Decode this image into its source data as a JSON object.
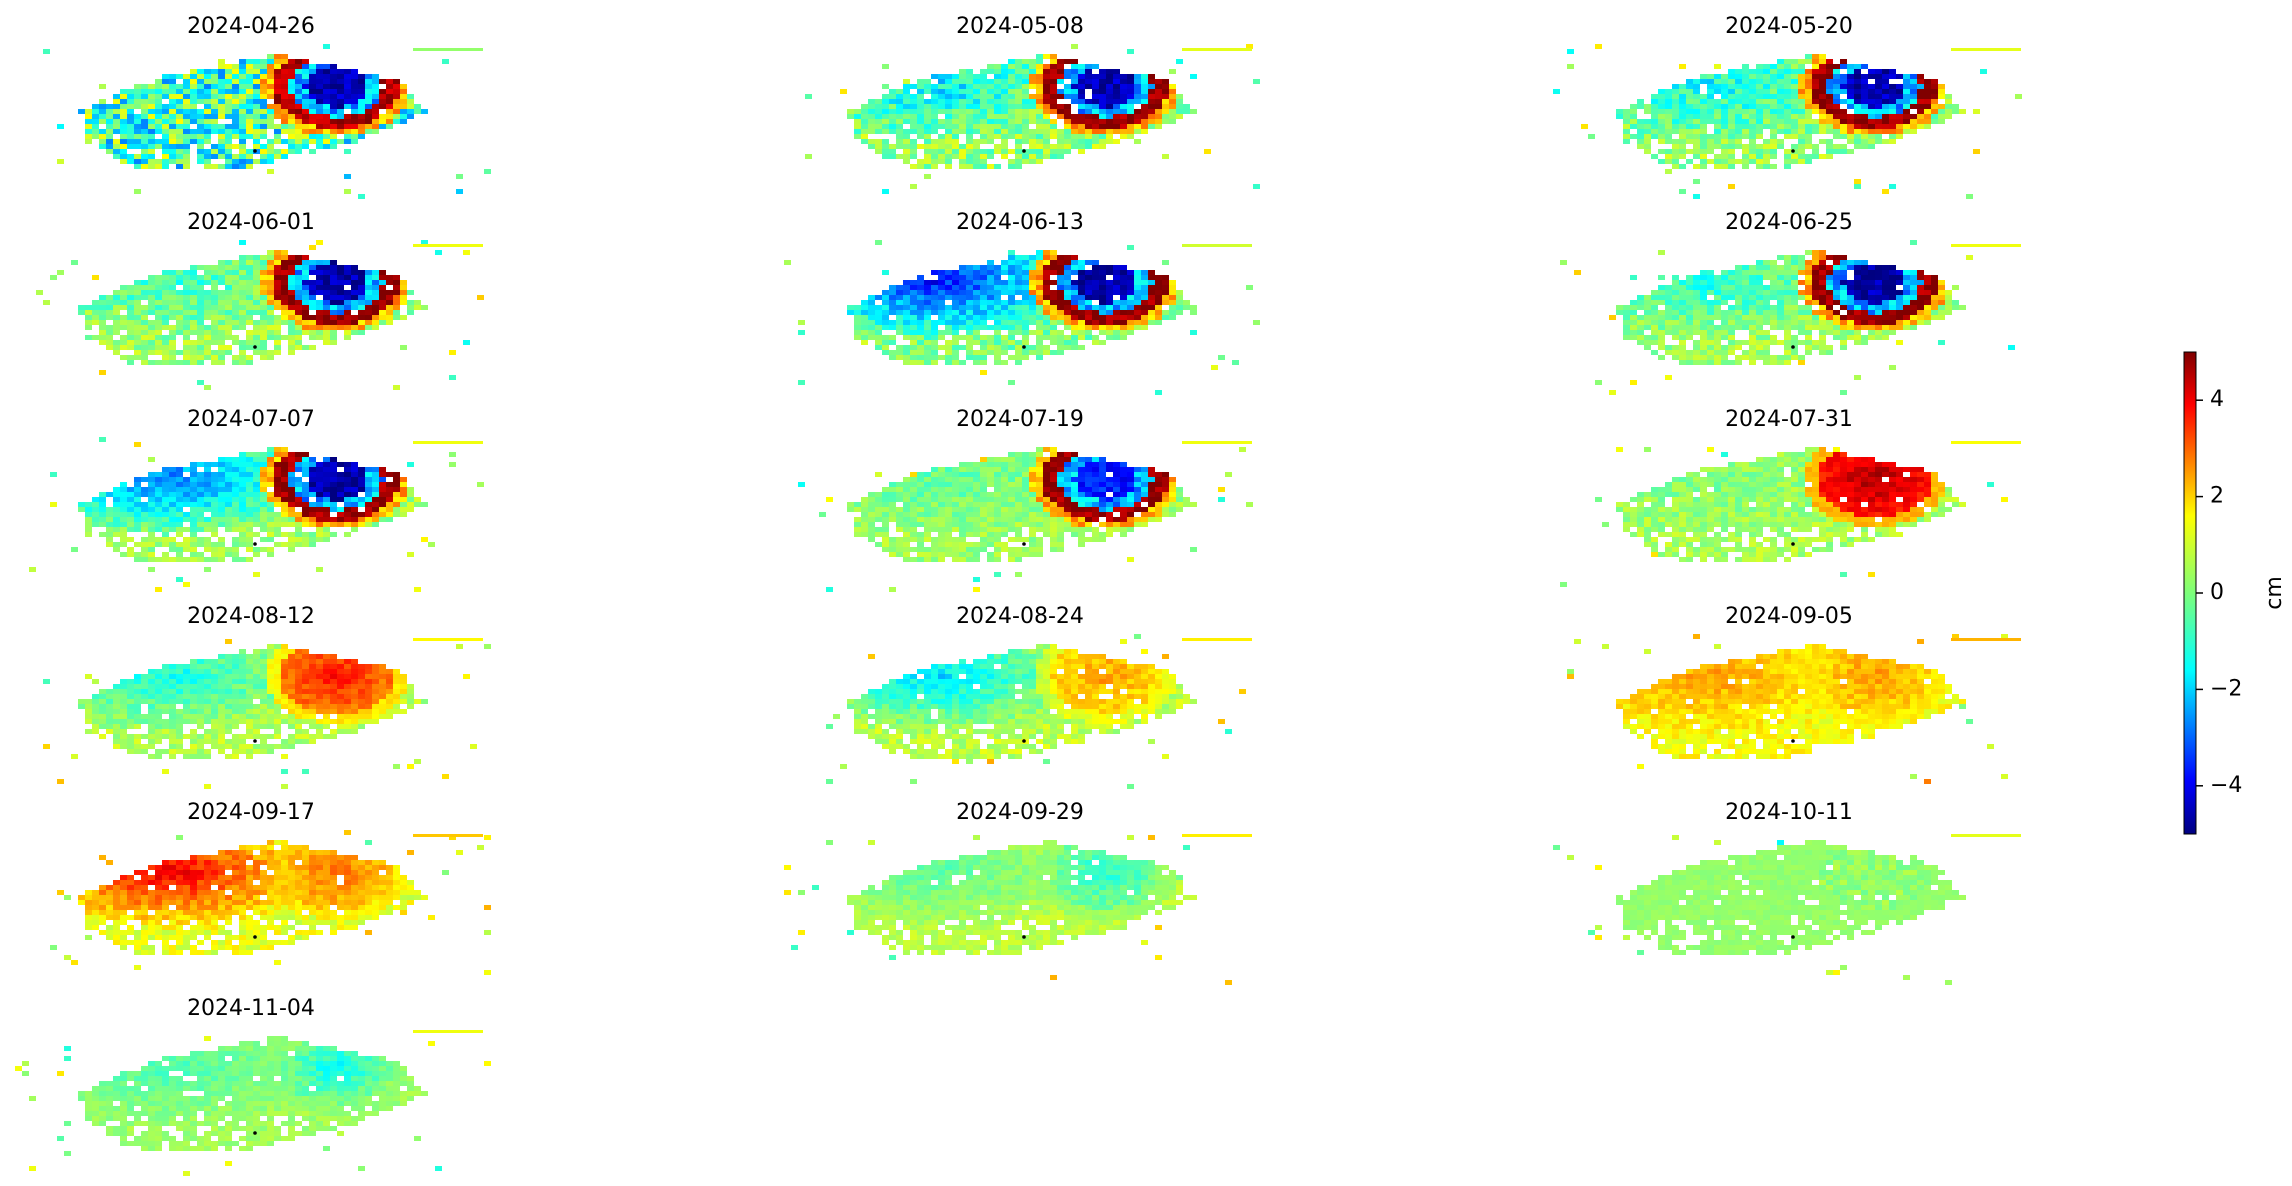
{
  "chart_data": {
    "type": "heatmap",
    "description_kind": "grid of displacement maps (small multiples) sharing one colorbar",
    "colormap": "jet",
    "colorbar": {
      "label": "cm",
      "vmin": -5,
      "vmax": 5,
      "ticks": [
        4,
        2,
        0,
        -2,
        -4
      ],
      "tick_labels": [
        "4",
        "2",
        "0",
        "−2",
        "−4"
      ],
      "placement": "right"
    },
    "axes_visible": false,
    "panels": [
      {
        "title": "2024-04-26",
        "bg": -0.6,
        "bg_noise": 1.9,
        "anomaly": {
          "type": "ring",
          "peak": -4.5,
          "rim": 4.5
        },
        "west": 0.0
      },
      {
        "title": "2024-05-08",
        "bg": 0.2,
        "bg_noise": 0.9,
        "anomaly": {
          "type": "fringe",
          "peak": -4.5,
          "rim": 4.8
        },
        "west": -1.6
      },
      {
        "title": "2024-05-20",
        "bg": 0.2,
        "bg_noise": 0.8,
        "anomaly": {
          "type": "fringe",
          "peak": -4.5,
          "rim": 4.8
        },
        "west": -1.4
      },
      {
        "title": "2024-06-01",
        "bg": 0.3,
        "bg_noise": 0.7,
        "anomaly": {
          "type": "fringe",
          "peak": -4.6,
          "rim": 4.8
        },
        "west": -1.0
      },
      {
        "title": "2024-06-13",
        "bg": 0.0,
        "bg_noise": 0.7,
        "anomaly": {
          "type": "fringe",
          "peak": -4.6,
          "rim": 4.8
        },
        "west": -3.6
      },
      {
        "title": "2024-06-25",
        "bg": 0.3,
        "bg_noise": 0.6,
        "anomaly": {
          "type": "fringe",
          "peak": -4.6,
          "rim": 4.8
        },
        "west": -1.2
      },
      {
        "title": "2024-07-07",
        "bg": 0.3,
        "bg_noise": 0.6,
        "anomaly": {
          "type": "fringe",
          "peak": -4.6,
          "rim": 4.8
        },
        "west": -3.0
      },
      {
        "title": "2024-07-19",
        "bg": 0.3,
        "bg_noise": 0.5,
        "anomaly": {
          "type": "fringe",
          "peak": -3.5,
          "rim": 4.8
        },
        "west": -0.6
      },
      {
        "title": "2024-07-31",
        "bg": 0.4,
        "bg_noise": 0.5,
        "anomaly": {
          "type": "blob",
          "peak": 4.6,
          "rim": 3.5
        },
        "west": -0.4
      },
      {
        "title": "2024-08-12",
        "bg": 0.5,
        "bg_noise": 0.5,
        "anomaly": {
          "type": "blob",
          "peak": 3.6,
          "rim": 2.5
        },
        "west": -1.6
      },
      {
        "title": "2024-08-24",
        "bg": 0.6,
        "bg_noise": 0.5,
        "anomaly": {
          "type": "blob",
          "peak": 2.2,
          "rim": 1.5
        },
        "west": -2.2
      },
      {
        "title": "2024-09-05",
        "bg": 1.2,
        "bg_noise": 0.4,
        "anomaly": {
          "type": "blob",
          "peak": 2.2,
          "rim": 1.6
        },
        "west": 1.0
      },
      {
        "title": "2024-09-17",
        "bg": 1.0,
        "bg_noise": 0.5,
        "anomaly": {
          "type": "blob",
          "peak": 2.6,
          "rim": 1.8
        },
        "west": 3.0
      },
      {
        "title": "2024-09-29",
        "bg": 0.6,
        "bg_noise": 0.3,
        "anomaly": {
          "type": "blob",
          "peak": -0.8,
          "rim": 0.0
        },
        "west": -1.0
      },
      {
        "title": "2024-10-11",
        "bg": 0.2,
        "bg_noise": 0.15,
        "anomaly": {
          "type": "blob",
          "peak": 0.2,
          "rim": 0.2
        },
        "west": 0.0
      },
      {
        "title": "2024-11-04",
        "bg": 0.3,
        "bg_noise": 0.3,
        "anomaly": {
          "type": "blob",
          "peak": -1.2,
          "rim": 0.0
        },
        "west": -0.8
      }
    ]
  }
}
